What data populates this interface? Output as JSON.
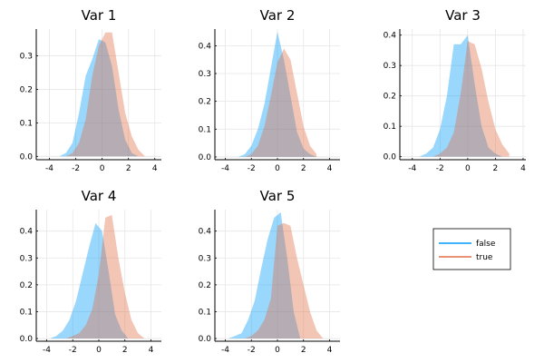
{
  "chart_data": [
    {
      "type": "area",
      "title": "Var 1",
      "xlim": [
        -5,
        4.5
      ],
      "ylim": [
        -0.01,
        0.38
      ],
      "xticks": [
        -4,
        -2,
        0,
        2,
        4
      ],
      "yticks": [
        0.0,
        0.1,
        0.2,
        0.3
      ],
      "series": [
        {
          "name": "false",
          "x": [
            -3.25,
            -2.75,
            -2.25,
            -1.75,
            -1.25,
            -0.75,
            -0.25,
            0.25,
            0.75,
            1.25,
            1.75,
            2.25,
            2.75,
            3.25
          ],
          "y": [
            0.0,
            0.01,
            0.04,
            0.13,
            0.24,
            0.29,
            0.35,
            0.34,
            0.27,
            0.14,
            0.05,
            0.01,
            0.0,
            0.0
          ]
        },
        {
          "name": "true",
          "x": [
            -3.25,
            -2.75,
            -2.25,
            -1.75,
            -1.25,
            -0.75,
            -0.25,
            0.25,
            0.75,
            1.25,
            1.75,
            2.25,
            2.75,
            3.25
          ],
          "y": [
            0.0,
            0.0,
            0.01,
            0.04,
            0.11,
            0.24,
            0.33,
            0.37,
            0.37,
            0.25,
            0.13,
            0.06,
            0.02,
            0.0
          ]
        }
      ]
    },
    {
      "type": "area",
      "title": "Var 2",
      "xlim": [
        -4.8,
        4.8
      ],
      "ylim": [
        -0.01,
        0.46
      ],
      "xticks": [
        -4,
        -2,
        0,
        2,
        4
      ],
      "yticks": [
        0.0,
        0.1,
        0.2,
        0.3,
        0.4
      ],
      "series": [
        {
          "name": "false",
          "x": [
            -3.0,
            -2.5,
            -2.0,
            -1.5,
            -1.0,
            -0.5,
            0.0,
            0.5,
            1.0,
            1.5,
            2.0,
            2.5,
            3.0
          ],
          "y": [
            0.0,
            0.01,
            0.04,
            0.1,
            0.19,
            0.32,
            0.45,
            0.35,
            0.22,
            0.09,
            0.03,
            0.01,
            0.0
          ]
        },
        {
          "name": "true",
          "x": [
            -3.0,
            -2.5,
            -2.0,
            -1.5,
            -1.0,
            -0.5,
            0.0,
            0.5,
            1.0,
            1.5,
            2.0,
            2.5,
            3.0
          ],
          "y": [
            0.0,
            0.0,
            0.01,
            0.04,
            0.11,
            0.22,
            0.34,
            0.39,
            0.35,
            0.23,
            0.11,
            0.04,
            0.01
          ]
        }
      ]
    },
    {
      "type": "area",
      "title": "Var 3",
      "xlim": [
        -4.9,
        4.2
      ],
      "ylim": [
        -0.01,
        0.42
      ],
      "xticks": [
        -4,
        -2,
        0,
        2,
        4
      ],
      "yticks": [
        0.0,
        0.1,
        0.2,
        0.3,
        0.4
      ],
      "series": [
        {
          "name": "false",
          "x": [
            -3.5,
            -3.0,
            -2.5,
            -2.0,
            -1.5,
            -1.0,
            -0.5,
            0.0,
            0.5,
            1.0,
            1.5,
            2.0,
            2.5
          ],
          "y": [
            0.0,
            0.01,
            0.03,
            0.09,
            0.2,
            0.37,
            0.37,
            0.4,
            0.24,
            0.1,
            0.03,
            0.01,
            0.0
          ]
        },
        {
          "name": "true",
          "x": [
            -3.0,
            -2.5,
            -2.0,
            -1.5,
            -1.0,
            -0.5,
            0.0,
            0.5,
            1.0,
            1.5,
            2.0,
            2.5,
            3.0
          ],
          "y": [
            0.0,
            0.0,
            0.01,
            0.03,
            0.08,
            0.21,
            0.38,
            0.37,
            0.29,
            0.18,
            0.09,
            0.04,
            0.01
          ]
        }
      ]
    },
    {
      "type": "area",
      "title": "Var 4",
      "xlim": [
        -4.8,
        4.8
      ],
      "ylim": [
        -0.01,
        0.48
      ],
      "xticks": [
        -4,
        -2,
        0,
        2,
        4
      ],
      "yticks": [
        0.0,
        0.1,
        0.2,
        0.3,
        0.4
      ],
      "series": [
        {
          "name": "false",
          "x": [
            -3.75,
            -3.25,
            -2.75,
            -2.25,
            -1.75,
            -1.25,
            -0.75,
            -0.25,
            0.25,
            0.75,
            1.25,
            1.75,
            2.25
          ],
          "y": [
            0.0,
            0.01,
            0.03,
            0.07,
            0.14,
            0.24,
            0.34,
            0.43,
            0.4,
            0.25,
            0.09,
            0.03,
            0.0
          ]
        },
        {
          "name": "true",
          "x": [
            -3.0,
            -2.5,
            -2.0,
            -1.5,
            -1.0,
            -0.5,
            0.0,
            0.5,
            1.0,
            1.5,
            2.0,
            2.5,
            3.0,
            3.5
          ],
          "y": [
            0.0,
            0.0,
            0.01,
            0.02,
            0.05,
            0.11,
            0.24,
            0.45,
            0.46,
            0.3,
            0.17,
            0.07,
            0.02,
            0.0
          ]
        }
      ]
    },
    {
      "type": "area",
      "title": "Var 5",
      "xlim": [
        -4.8,
        4.8
      ],
      "ylim": [
        -0.01,
        0.48
      ],
      "xticks": [
        -4,
        -2,
        0,
        2,
        4
      ],
      "yticks": [
        0.0,
        0.1,
        0.2,
        0.3,
        0.4
      ],
      "series": [
        {
          "name": "false",
          "x": [
            -3.75,
            -3.25,
            -2.75,
            -2.25,
            -1.75,
            -1.25,
            -0.75,
            -0.25,
            0.25,
            0.75,
            1.25,
            1.75
          ],
          "y": [
            0.0,
            0.01,
            0.02,
            0.07,
            0.14,
            0.26,
            0.37,
            0.45,
            0.47,
            0.3,
            0.1,
            0.0
          ]
        },
        {
          "name": "true",
          "x": [
            -2.5,
            -2.0,
            -1.5,
            -1.0,
            -0.5,
            0.0,
            0.5,
            1.0,
            1.5,
            2.0,
            2.5,
            3.0,
            3.5
          ],
          "y": [
            0.0,
            0.01,
            0.03,
            0.07,
            0.15,
            0.42,
            0.43,
            0.42,
            0.3,
            0.2,
            0.1,
            0.03,
            0.0
          ]
        }
      ]
    }
  ],
  "legend": {
    "placement": "right, below Var 3",
    "entries": [
      {
        "label": "false",
        "color": "#009af9"
      },
      {
        "label": "true",
        "color": "#e26f46"
      }
    ]
  },
  "colors": {
    "false": "#009af9",
    "true": "#e26f46",
    "fill_opacity": 0.4
  },
  "grid": true
}
